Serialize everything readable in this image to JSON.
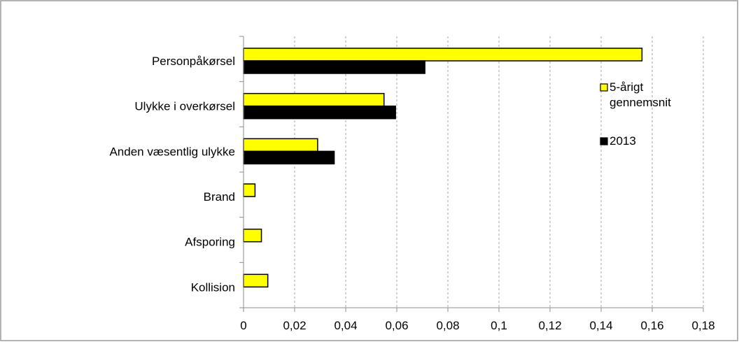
{
  "chart_data": {
    "type": "bar",
    "orientation": "horizontal",
    "categories": [
      "Personpåkørsel",
      "Ulykke i overkørsel",
      "Anden væsentlig ulykke",
      "Brand",
      "Afsporing",
      "Kollision"
    ],
    "series": [
      {
        "name": "5-årigt gennemsnit",
        "color": "#FFFF00",
        "values": [
          0.156,
          0.055,
          0.029,
          0.0045,
          0.007,
          0.0095
        ]
      },
      {
        "name": "2013",
        "color": "#000000",
        "values": [
          0.071,
          0.0595,
          0.0355,
          0,
          0,
          0
        ]
      }
    ],
    "xlim": [
      0,
      0.18
    ],
    "xticks": [
      0,
      0.02,
      0.04,
      0.06,
      0.08,
      0.1,
      0.12,
      0.14,
      0.16,
      0.18
    ],
    "xtick_labels": [
      "0",
      "0,02",
      "0,04",
      "0,06",
      "0,08",
      "0,1",
      "0,12",
      "0,14",
      "0,16",
      "0,18"
    ],
    "grid": "vertical-dashed",
    "legend": {
      "placement": "right",
      "items": [
        {
          "label_lines": [
            "5-årigt",
            "gennemsnit"
          ]
        },
        {
          "label_lines": [
            "2013"
          ]
        }
      ]
    }
  }
}
